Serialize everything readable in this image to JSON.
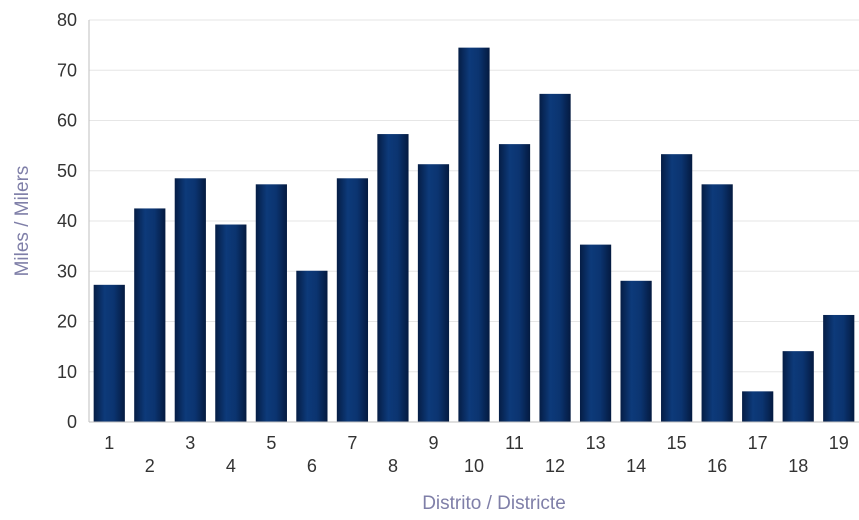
{
  "chart_data": {
    "type": "bar",
    "categories": [
      "1",
      "2",
      "3",
      "4",
      "5",
      "6",
      "7",
      "8",
      "9",
      "10",
      "11",
      "12",
      "13",
      "14",
      "15",
      "16",
      "17",
      "18",
      "19"
    ],
    "values": [
      27.3,
      42.5,
      48.5,
      39.3,
      47.3,
      30.1,
      48.5,
      57.3,
      51.3,
      74.5,
      55.3,
      65.3,
      35.3,
      28.1,
      53.3,
      47.3,
      6.1,
      14.1,
      21.3
    ],
    "xlabel": "Distrito / Districte",
    "ylabel": "Miles / Milers",
    "ylim": [
      0,
      80
    ],
    "yticks": [
      0,
      10,
      20,
      30,
      40,
      50,
      60,
      70,
      80
    ],
    "grid": true,
    "bar_color": "#0a2f66",
    "bar_gradient_dark": "#041a40"
  }
}
